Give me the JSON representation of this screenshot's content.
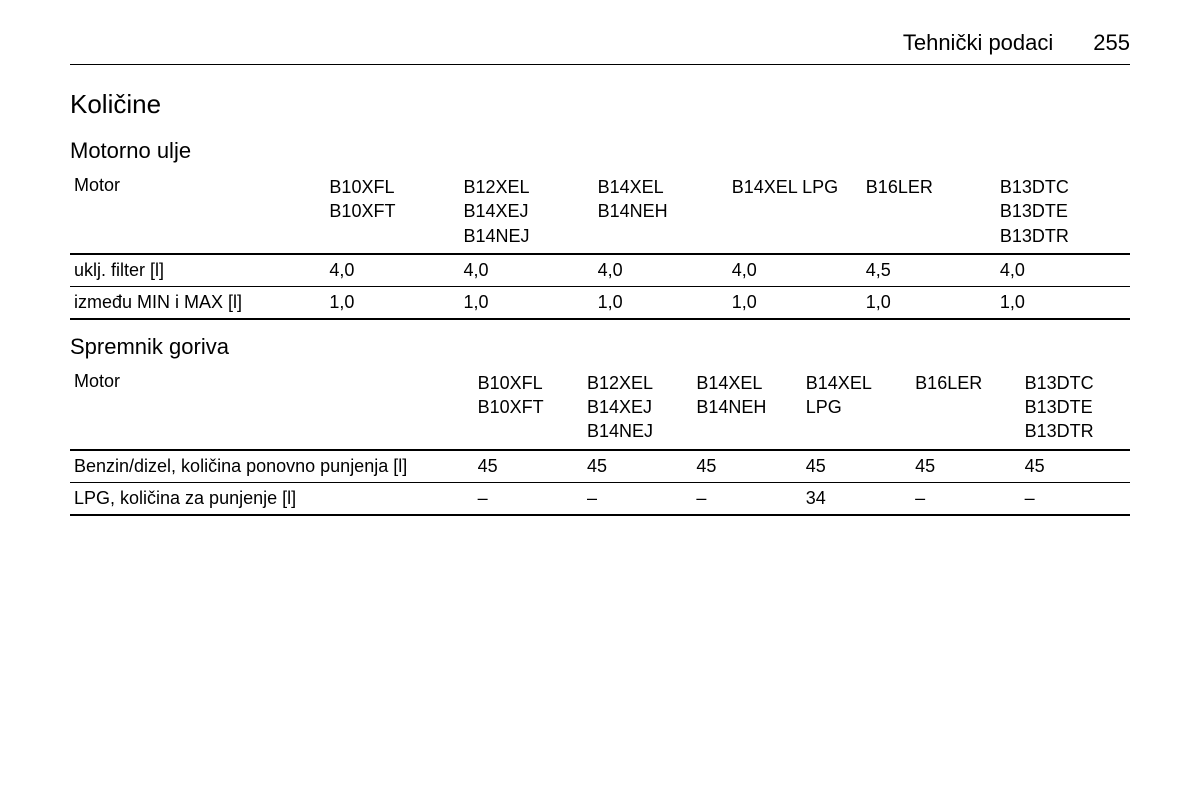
{
  "header": {
    "section_title": "Tehnički podaci",
    "page_number": "255"
  },
  "main_heading": "Količine",
  "table1": {
    "subheading": "Motorno ulje",
    "row_header_label": "Motor",
    "columns": [
      "B10XFL\nB10XFT",
      "B12XEL\nB14XEJ\nB14NEJ",
      "B14XEL\nB14NEH",
      "B14XEL LPG",
      "B16LER",
      "B13DTC\nB13DTE\nB13DTR"
    ],
    "rows": [
      {
        "label": "uklj. filter [l]",
        "values": [
          "4,0",
          "4,0",
          "4,0",
          "4,0",
          "4,5",
          "4,0"
        ]
      },
      {
        "label": "između MIN i MAX [l]",
        "values": [
          "1,0",
          "1,0",
          "1,0",
          "1,0",
          "1,0",
          "1,0"
        ]
      }
    ]
  },
  "table2": {
    "subheading": "Spremnik goriva",
    "row_header_label": "Motor",
    "columns": [
      "B10XFL\nB10XFT",
      "B12XEL\nB14XEJ\nB14NEJ",
      "B14XEL\nB14NEH",
      "B14XEL LPG",
      "B16LER",
      "B13DTC\nB13DTE\nB13DTR"
    ],
    "rows": [
      {
        "label": "Benzin/dizel, količina ponovno punjenja [l]",
        "values": [
          "45",
          "45",
          "45",
          "45",
          "45",
          "45"
        ]
      },
      {
        "label": "LPG, količina za punjenje [l]",
        "values": [
          "–",
          "–",
          "–",
          "34",
          "–",
          "–"
        ]
      }
    ]
  }
}
